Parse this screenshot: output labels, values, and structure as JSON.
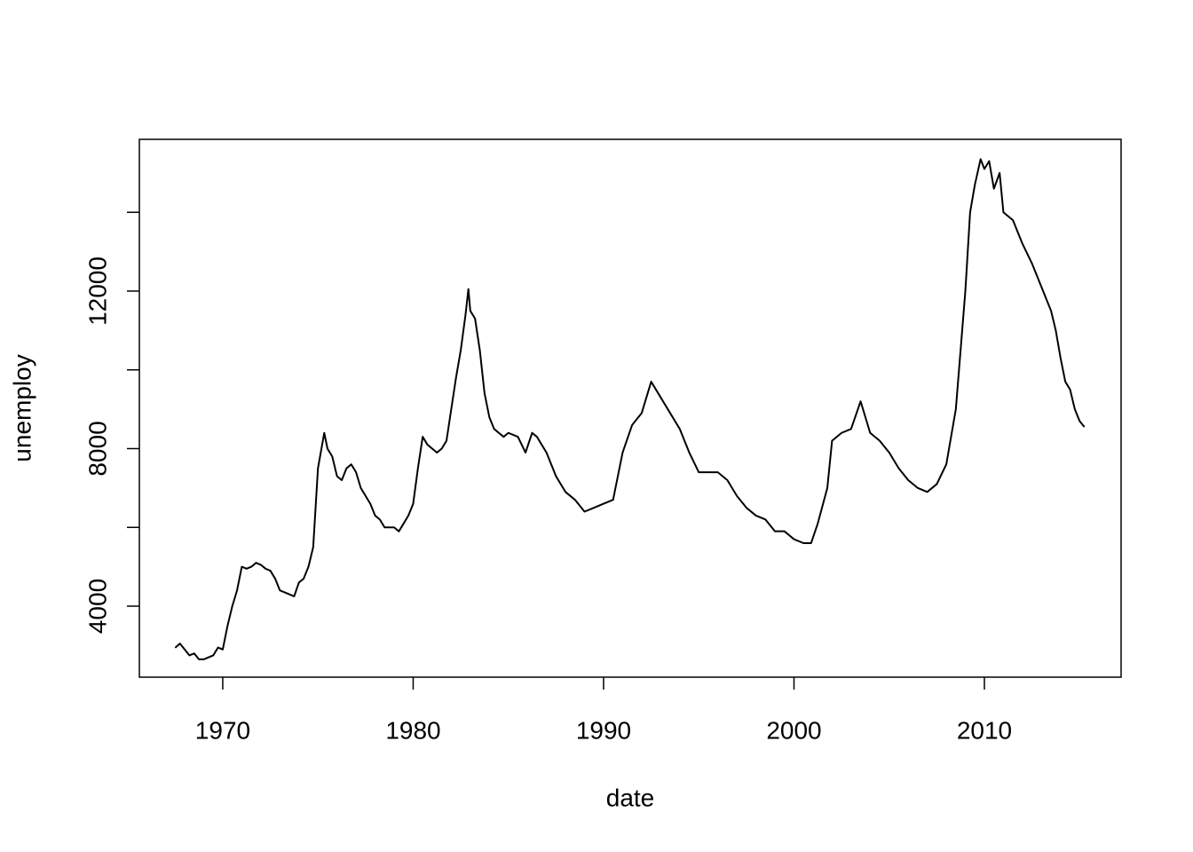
{
  "chart_data": {
    "type": "line",
    "xlabel": "date",
    "ylabel": "unemploy",
    "color": "#000000",
    "xlim": [
      1965.62,
      2017.18
    ],
    "ylim": [
      2197,
      15853
    ],
    "xticks": [
      1970,
      1980,
      1990,
      2000,
      2010
    ],
    "yticks": [
      4000,
      8000,
      12000
    ],
    "yticks_unlabeled": [
      6000,
      10000,
      14000
    ],
    "x": [
      1967.5,
      1967.75,
      1968.0,
      1968.25,
      1968.5,
      1968.75,
      1969.0,
      1969.25,
      1969.5,
      1969.75,
      1970.0,
      1970.25,
      1970.5,
      1970.75,
      1971.0,
      1971.25,
      1971.5,
      1971.75,
      1972.0,
      1972.25,
      1972.5,
      1972.75,
      1973.0,
      1973.25,
      1973.5,
      1973.75,
      1974.0,
      1974.25,
      1974.5,
      1974.75,
      1975.0,
      1975.33,
      1975.5,
      1975.75,
      1976.0,
      1976.25,
      1976.5,
      1976.75,
      1977.0,
      1977.25,
      1977.5,
      1977.75,
      1978.0,
      1978.25,
      1978.5,
      1978.75,
      1979.0,
      1979.25,
      1979.5,
      1979.75,
      1980.0,
      1980.25,
      1980.5,
      1980.75,
      1981.0,
      1981.25,
      1981.5,
      1981.75,
      1982.0,
      1982.25,
      1982.5,
      1982.75,
      1982.9,
      1983.0,
      1983.25,
      1983.5,
      1983.75,
      1984.0,
      1984.25,
      1984.5,
      1984.75,
      1985.0,
      1985.5,
      1985.9,
      1986.25,
      1986.5,
      1986.75,
      1987.0,
      1987.5,
      1988.0,
      1988.5,
      1989.0,
      1989.5,
      1990.0,
      1990.5,
      1991.0,
      1991.5,
      1992.0,
      1992.5,
      1993.0,
      1993.5,
      1994.0,
      1994.5,
      1995.0,
      1995.5,
      1996.0,
      1996.5,
      1997.0,
      1997.5,
      1998.0,
      1998.5,
      1999.0,
      1999.5,
      2000.0,
      2000.5,
      2000.9,
      2001.25,
      2001.75,
      2002.0,
      2002.5,
      2003.0,
      2003.5,
      2004.0,
      2004.5,
      2005.0,
      2005.5,
      2006.0,
      2006.5,
      2007.0,
      2007.5,
      2008.0,
      2008.5,
      2008.75,
      2009.0,
      2009.25,
      2009.5,
      2009.8,
      2010.0,
      2010.25,
      2010.5,
      2010.8,
      2011.0,
      2011.5,
      2012.0,
      2012.5,
      2013.0,
      2013.25,
      2013.5,
      2013.75,
      2014.0,
      2014.25,
      2014.5,
      2014.75,
      2015.0,
      2015.25
    ],
    "values": [
      2944,
      3050,
      2900,
      2750,
      2800,
      2650,
      2650,
      2700,
      2750,
      2950,
      2900,
      3500,
      4000,
      4400,
      5000,
      4950,
      5000,
      5100,
      5050,
      4950,
      4900,
      4700,
      4400,
      4350,
      4300,
      4250,
      4600,
      4700,
      5000,
      5500,
      7500,
      8400,
      8000,
      7800,
      7300,
      7200,
      7500,
      7600,
      7400,
      7000,
      6800,
      6600,
      6300,
      6200,
      6000,
      6000,
      6000,
      5900,
      6100,
      6300,
      6600,
      7500,
      8300,
      8100,
      8000,
      7900,
      8000,
      8200,
      9000,
      9800,
      10500,
      11400,
      12050,
      11500,
      11300,
      10500,
      9400,
      8800,
      8500,
      8400,
      8300,
      8400,
      8300,
      7900,
      8400,
      8300,
      8100,
      7900,
      7300,
      6900,
      6700,
      6400,
      6500,
      6600,
      6700,
      7900,
      8600,
      8900,
      9700,
      9300,
      8900,
      8500,
      7900,
      7400,
      7400,
      7400,
      7200,
      6800,
      6500,
      6300,
      6200,
      5900,
      5900,
      5700,
      5600,
      5600,
      6100,
      7000,
      8200,
      8400,
      8500,
      9200,
      8400,
      8200,
      7900,
      7500,
      7200,
      7000,
      6900,
      7100,
      7600,
      9000,
      10500,
      12000,
      14000,
      14700,
      15350,
      15100,
      15300,
      14600,
      15000,
      14000,
      13800,
      13200,
      12700,
      12100,
      11800,
      11500,
      11000,
      10300,
      9700,
      9500,
      9000,
      8700,
      8549
    ]
  }
}
